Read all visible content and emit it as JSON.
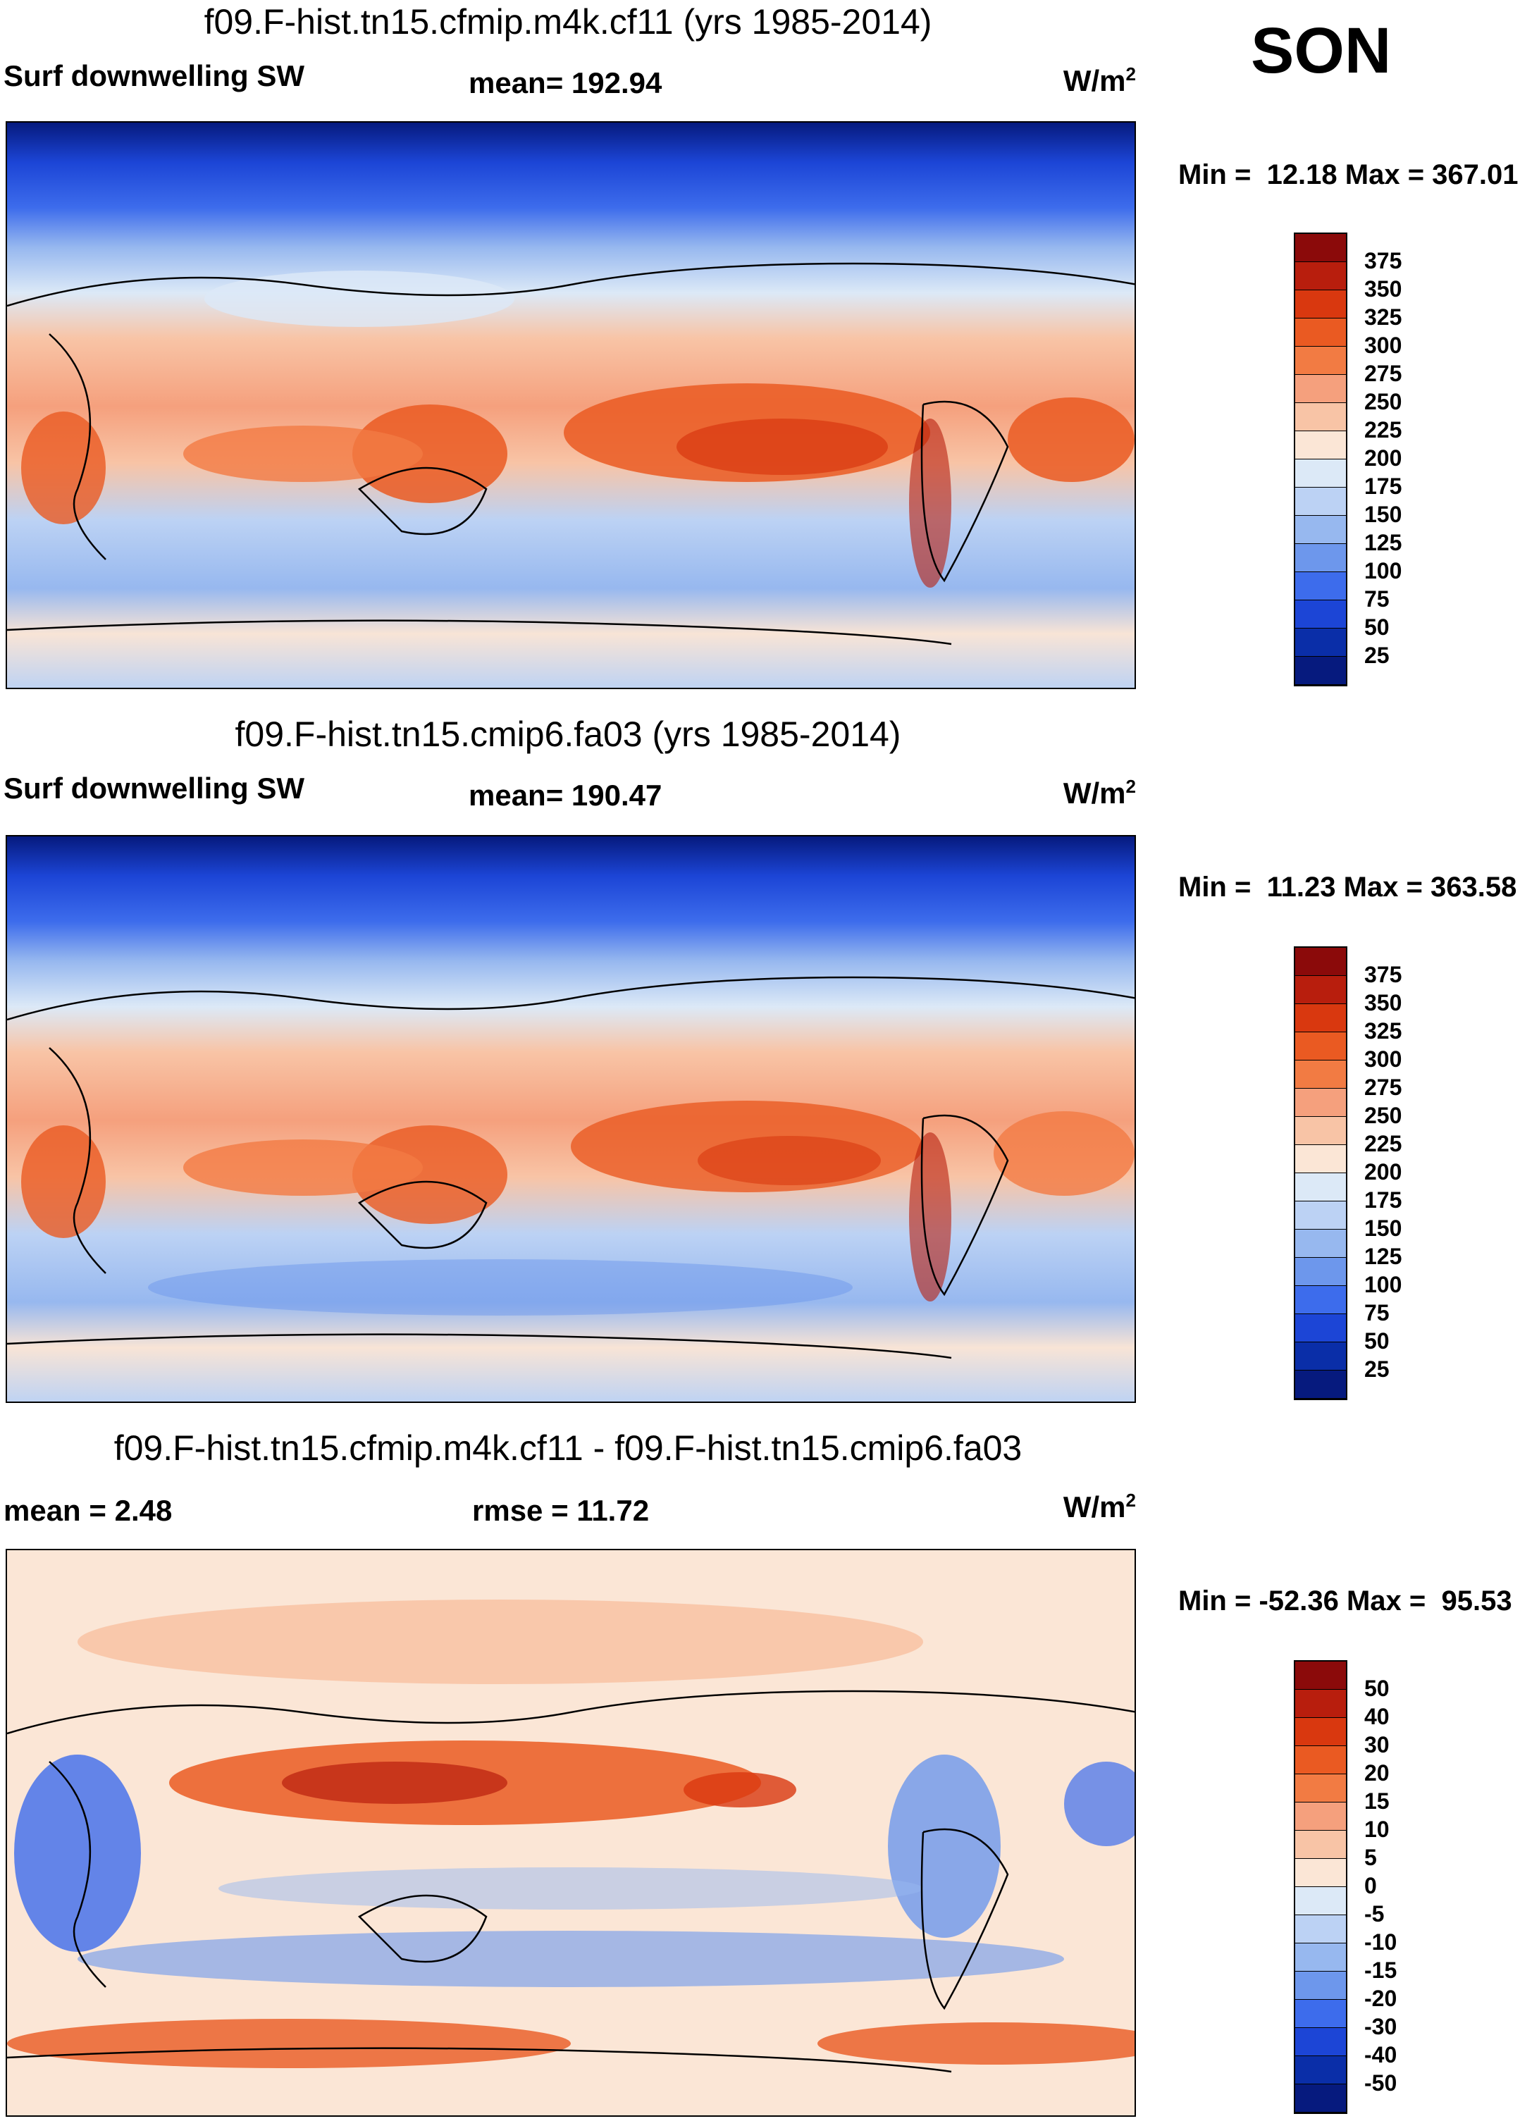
{
  "season": "SON",
  "panels": [
    {
      "title": "f09.F-hist.tn15.cfmip.m4k.cf11 (yrs 1985-2014)",
      "left_label": "Surf downwelling SW",
      "center_label": "mean= 192.94",
      "units": "W/m",
      "units_sup": "2",
      "minmax": "Min =  12.18 Max = 367.01"
    },
    {
      "title": "f09.F-hist.tn15.cmip6.fa03 (yrs 1985-2014)",
      "left_label": "Surf downwelling SW",
      "center_label": "mean= 190.47",
      "units": "W/m",
      "units_sup": "2",
      "minmax": "Min =  11.23 Max = 363.58"
    },
    {
      "title": "f09.F-hist.tn15.cfmip.m4k.cf11 - f09.F-hist.tn15.cmip6.fa03",
      "left_label": "mean =   2.48",
      "center_label": "rmse =  11.72",
      "units": "W/m",
      "units_sup": "2",
      "minmax": "Min = -52.36 Max =  95.53"
    }
  ],
  "chart_data": [
    {
      "type": "heatmap",
      "title": "f09.F-hist.tn15.cfmip.m4k.cf11 (yrs 1985-2014)",
      "variable": "Surf downwelling SW",
      "mean": 192.94,
      "min": 12.18,
      "max": 367.01,
      "units": "W/m2",
      "colorbar_levels": [
        375,
        350,
        325,
        300,
        275,
        250,
        225,
        200,
        175,
        150,
        125,
        100,
        75,
        50,
        25
      ],
      "colorbar_colors": [
        "#8b0a0a",
        "#b81e0d",
        "#d9380f",
        "#ea5a22",
        "#f27b43",
        "#f5a07d",
        "#f8c4a6",
        "#fbe6d6",
        "#dce9f7",
        "#bcd2f4",
        "#97b8ef",
        "#6d97ec",
        "#3d6cec",
        "#1c45d6",
        "#0a2ea8",
        "#061a7e"
      ]
    },
    {
      "type": "heatmap",
      "title": "f09.F-hist.tn15.cmip6.fa03 (yrs 1985-2014)",
      "variable": "Surf downwelling SW",
      "mean": 190.47,
      "min": 11.23,
      "max": 363.58,
      "units": "W/m2",
      "colorbar_levels": [
        375,
        350,
        325,
        300,
        275,
        250,
        225,
        200,
        175,
        150,
        125,
        100,
        75,
        50,
        25
      ],
      "colorbar_colors": [
        "#8b0a0a",
        "#b81e0d",
        "#d9380f",
        "#ea5a22",
        "#f27b43",
        "#f5a07d",
        "#f8c4a6",
        "#fbe6d6",
        "#dce9f7",
        "#bcd2f4",
        "#97b8ef",
        "#6d97ec",
        "#3d6cec",
        "#1c45d6",
        "#0a2ea8",
        "#061a7e"
      ]
    },
    {
      "type": "heatmap",
      "title": "f09.F-hist.tn15.cfmip.m4k.cf11 - f09.F-hist.tn15.cmip6.fa03",
      "mean": 2.48,
      "rmse": 11.72,
      "min": -52.36,
      "max": 95.53,
      "units": "W/m2",
      "colorbar_levels": [
        50,
        40,
        30,
        20,
        15,
        10,
        5,
        0,
        -5,
        -10,
        -15,
        -20,
        -30,
        -40,
        -50
      ],
      "colorbar_colors": [
        "#8b0a0a",
        "#b81e0d",
        "#d9380f",
        "#ea5a22",
        "#f27b43",
        "#f5a07d",
        "#f8c4a6",
        "#fbe6d6",
        "#dce9f7",
        "#bcd2f4",
        "#97b8ef",
        "#6d97ec",
        "#3d6cec",
        "#1c45d6",
        "#0a2ea8",
        "#061a7e"
      ]
    }
  ]
}
